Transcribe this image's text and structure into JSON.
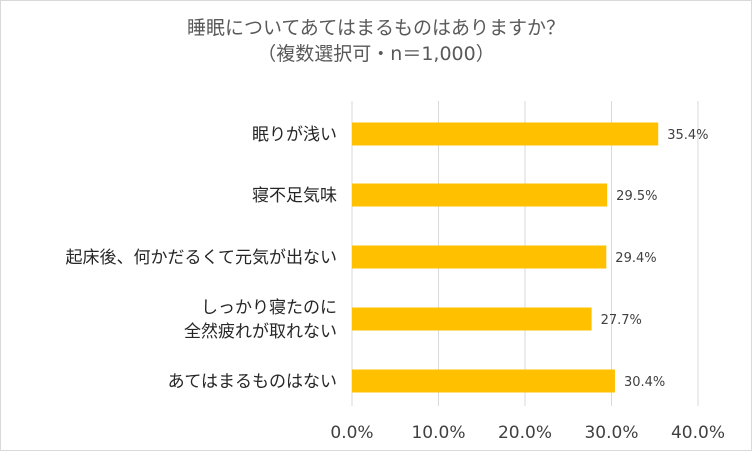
{
  "chart_data": {
    "type": "bar",
    "orientation": "horizontal",
    "title": [
      "睡眠についてあてはまるものはありますか？",
      "（複数選択可・n＝1,000）"
    ],
    "categories": [
      [
        "眠りが浅い"
      ],
      [
        "寝不足気味"
      ],
      [
        "起床後、何かだるくて元気が出ない"
      ],
      [
        "しっかり寝たのに",
        "全然疲れが取れない"
      ],
      [
        "あてはまるものはない"
      ]
    ],
    "values": [
      35.4,
      29.5,
      29.4,
      27.7,
      30.4
    ],
    "data_labels": [
      "35.4%",
      "29.5%",
      "29.4%",
      "27.7%",
      "30.4%"
    ],
    "xlim": [
      0,
      40
    ],
    "xticks": [
      "0.0%",
      "10.0%",
      "20.0%",
      "30.0%",
      "40.0%"
    ],
    "xtick_values": [
      0,
      10,
      20,
      30,
      40
    ],
    "bar_color": "#FFC000",
    "grid_color": "#d9d9d9",
    "grid": true
  }
}
